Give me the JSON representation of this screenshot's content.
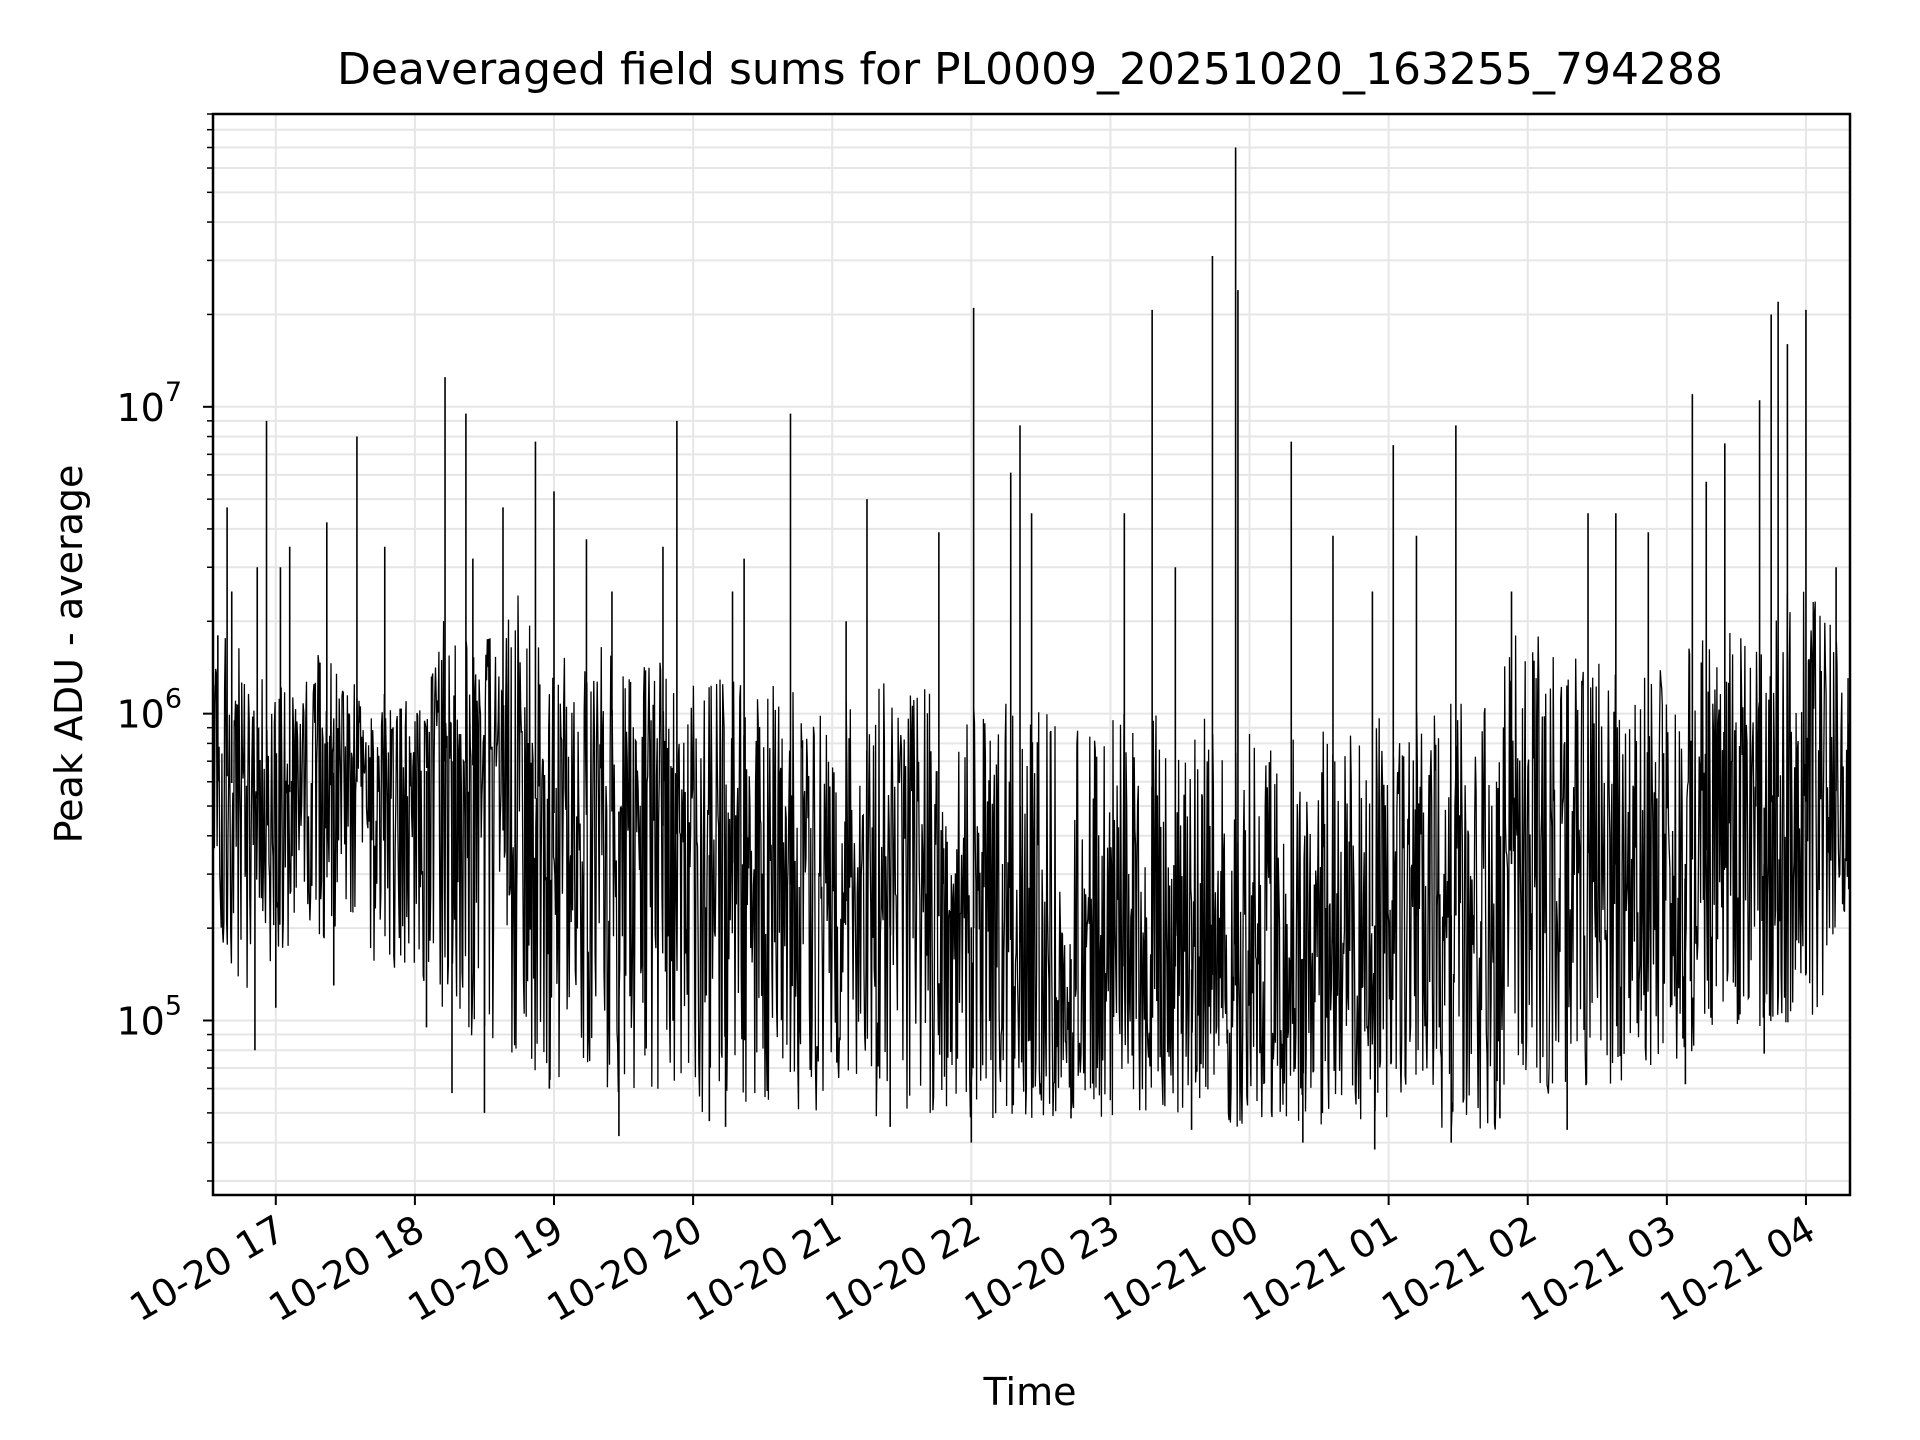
{
  "chart_data": {
    "type": "line",
    "title": "Deaveraged field sums for PL0009_20251020_163255_794288",
    "xlabel": "Time",
    "ylabel": "Peak ADU - average",
    "y_scale": "log",
    "ylim": [
      27000,
      90000000
    ],
    "xlim": [
      "2025-10-20 16:32:55",
      "2025-10-21 04:19:00"
    ],
    "x_ticks": [
      {
        "value": "2025-10-20 17:00",
        "label": "10-20 17"
      },
      {
        "value": "2025-10-20 18:00",
        "label": "10-20 18"
      },
      {
        "value": "2025-10-20 19:00",
        "label": "10-20 19"
      },
      {
        "value": "2025-10-20 20:00",
        "label": "10-20 20"
      },
      {
        "value": "2025-10-20 21:00",
        "label": "10-20 21"
      },
      {
        "value": "2025-10-20 22:00",
        "label": "10-20 22"
      },
      {
        "value": "2025-10-20 23:00",
        "label": "10-20 23"
      },
      {
        "value": "2025-10-21 00:00",
        "label": "10-21 00"
      },
      {
        "value": "2025-10-21 01:00",
        "label": "10-21 01"
      },
      {
        "value": "2025-10-21 02:00",
        "label": "10-21 02"
      },
      {
        "value": "2025-10-21 03:00",
        "label": "10-21 03"
      },
      {
        "value": "2025-10-21 04:00",
        "label": "10-21 04"
      }
    ],
    "y_ticks": [
      {
        "value": 100000,
        "mantissa": "10",
        "exp": "5"
      },
      {
        "value": 1000000,
        "mantissa": "10",
        "exp": "6"
      },
      {
        "value": 10000000,
        "mantissa": "10",
        "exp": "7"
      }
    ],
    "grid": true,
    "line_color": "#000000",
    "grid_color": "#e6e6e6",
    "series": [
      {
        "x": [
          "2025-10-20 16:33",
          "2025-10-20 16:40",
          "2025-10-20 16:49",
          "2025-10-20 16:56",
          "2025-10-20 17:05",
          "2025-10-20 17:15",
          "2025-10-20 17:23",
          "2025-10-20 17:35",
          "2025-10-20 17:45",
          "2025-10-20 17:55",
          "2025-10-20 18:05",
          "2025-10-20 18:13",
          "2025-10-20 18:20",
          "2025-10-20 18:32",
          "2025-10-20 18:45",
          "2025-10-20 18:55",
          "2025-10-20 19:05",
          "2025-10-20 19:20",
          "2025-10-20 19:35",
          "2025-10-20 19:50",
          "2025-10-20 20:05",
          "2025-10-20 20:20",
          "2025-10-20 20:40",
          "2025-10-20 21:00",
          "2025-10-20 21:25",
          "2025-10-20 21:45",
          "2025-10-20 22:01",
          "2025-10-20 22:20",
          "2025-10-20 22:40",
          "2025-10-20 23:00",
          "2025-10-20 23:15",
          "2025-10-20 23:30",
          "2025-10-20 23:45",
          "2025-10-20 23:54",
          "2025-10-21 00:10",
          "2025-10-21 00:30",
          "2025-10-21 00:50",
          "2025-10-21 01:10",
          "2025-10-21 01:30",
          "2025-10-21 01:47",
          "2025-10-21 01:55",
          "2025-10-21 02:15",
          "2025-10-21 02:35",
          "2025-10-21 02:55",
          "2025-10-21 03:15",
          "2025-10-21 03:35",
          "2025-10-21 03:50",
          "2025-10-21 04:05",
          "2025-10-21 04:18"
        ],
        "y": [
          800000,
          600000,
          550000,
          500000,
          550000,
          600000,
          650000,
          600000,
          650000,
          650000,
          650000,
          700000,
          700000,
          650000,
          600000,
          500000,
          450000,
          480000,
          480000,
          420000,
          350000,
          320000,
          280000,
          250000,
          230000,
          220000,
          200000,
          180000,
          160000,
          150000,
          150000,
          150000,
          140000,
          130000,
          140000,
          170000,
          200000,
          220000,
          220000,
          200000,
          380000,
          380000,
          330000,
          280000,
          350000,
          450000,
          550000,
          500000,
          600000
        ],
        "y_min": [
          300000,
          120000,
          120000,
          150000,
          160000,
          200000,
          180000,
          170000,
          150000,
          140000,
          130000,
          100000,
          80000,
          80000,
          70000,
          65000,
          60000,
          60000,
          55000,
          55000,
          50000,
          50000,
          50000,
          50000,
          48000,
          48000,
          47000,
          48000,
          48000,
          48000,
          50000,
          48000,
          46000,
          45000,
          45000,
          45000,
          45000,
          44000,
          45000,
          44000,
          60000,
          55000,
          60000,
          70000,
          80000,
          90000,
          95000,
          100000,
          230000
        ],
        "y_max": [
          1400000,
          2500000,
          1600000,
          1300000,
          1300000,
          1600000,
          1500000,
          1300000,
          1200000,
          1100000,
          1300000,
          2200000,
          1800000,
          1800000,
          2500000,
          2000000,
          1500000,
          1800000,
          1500000,
          1500000,
          1400000,
          1300000,
          1300000,
          1400000,
          1300000,
          1200000,
          1100000,
          1100000,
          1000000,
          1000000,
          1100000,
          1000000,
          1000000,
          900000,
          900000,
          900000,
          1000000,
          1000000,
          1100000,
          1300000,
          2000000,
          1700000,
          1400000,
          1400000,
          1900000,
          2200000,
          2800000,
          2400000,
          1500000
        ],
        "spikes": [
          [
            "2025-10-20 16:35",
            1800000
          ],
          [
            "2025-10-20 16:39",
            4700000
          ],
          [
            "2025-10-20 16:41",
            2500000
          ],
          [
            "2025-10-20 16:52",
            3000000
          ],
          [
            "2025-10-20 16:56",
            9000000
          ],
          [
            "2025-10-20 17:02",
            3000000
          ],
          [
            "2025-10-20 17:06",
            3500000
          ],
          [
            "2025-10-20 17:22",
            4200000
          ],
          [
            "2025-10-20 17:35",
            8000000
          ],
          [
            "2025-10-20 17:47",
            3500000
          ],
          [
            "2025-10-20 18:13",
            12500000
          ],
          [
            "2025-10-20 18:22",
            9500000
          ],
          [
            "2025-10-20 18:25",
            3200000
          ],
          [
            "2025-10-20 18:38",
            4700000
          ],
          [
            "2025-10-20 18:52",
            7700000
          ],
          [
            "2025-10-20 19:00",
            5300000
          ],
          [
            "2025-10-20 19:14",
            3700000
          ],
          [
            "2025-10-20 19:25",
            2500000
          ],
          [
            "2025-10-20 19:47",
            3500000
          ],
          [
            "2025-10-20 19:53",
            9000000
          ],
          [
            "2025-10-20 20:17",
            2500000
          ],
          [
            "2025-10-20 20:22",
            3200000
          ],
          [
            "2025-10-20 20:42",
            9500000
          ],
          [
            "2025-10-20 21:06",
            2000000
          ],
          [
            "2025-10-20 21:15",
            5000000
          ],
          [
            "2025-10-20 21:46",
            3900000
          ],
          [
            "2025-10-20 22:01",
            21000000
          ],
          [
            "2025-10-20 22:17",
            6100000
          ],
          [
            "2025-10-20 22:21",
            8700000
          ],
          [
            "2025-10-20 22:26",
            4500000
          ],
          [
            "2025-10-20 23:06",
            4500000
          ],
          [
            "2025-10-20 23:18",
            20700000
          ],
          [
            "2025-10-20 23:28",
            3000000
          ],
          [
            "2025-10-20 23:44",
            31000000
          ],
          [
            "2025-10-20 23:54",
            70000000
          ],
          [
            "2025-10-20 23:55",
            24000000
          ],
          [
            "2025-10-21 00:18",
            7700000
          ],
          [
            "2025-10-21 00:36",
            3800000
          ],
          [
            "2025-10-21 00:53",
            2500000
          ],
          [
            "2025-10-21 01:02",
            7500000
          ],
          [
            "2025-10-21 01:12",
            3800000
          ],
          [
            "2025-10-21 01:29",
            8700000
          ],
          [
            "2025-10-21 01:53",
            2500000
          ],
          [
            "2025-10-21 02:26",
            4500000
          ],
          [
            "2025-10-21 02:38",
            4500000
          ],
          [
            "2025-10-21 02:52",
            3900000
          ],
          [
            "2025-10-21 03:11",
            11000000
          ],
          [
            "2025-10-21 03:17",
            5700000
          ],
          [
            "2025-10-21 03:25",
            7600000
          ],
          [
            "2025-10-21 03:40",
            10500000
          ],
          [
            "2025-10-21 03:45",
            20000000
          ],
          [
            "2025-10-21 03:48",
            22000000
          ],
          [
            "2025-10-21 03:52",
            16000000
          ],
          [
            "2025-10-21 04:00",
            20700000
          ],
          [
            "2025-10-21 04:13",
            3000000
          ]
        ],
        "dips": [
          [
            "2025-10-20 16:51",
            80000
          ],
          [
            "2025-10-20 17:00",
            110000
          ],
          [
            "2025-10-20 17:25",
            130000
          ],
          [
            "2025-10-20 18:05",
            95000
          ],
          [
            "2025-10-20 18:16",
            58000
          ],
          [
            "2025-10-20 18:30",
            50000
          ],
          [
            "2025-10-20 18:58",
            60000
          ],
          [
            "2025-10-20 19:28",
            42000
          ],
          [
            "2025-10-20 20:07",
            47000
          ],
          [
            "2025-10-20 20:14",
            45000
          ],
          [
            "2025-10-20 21:25",
            45000
          ],
          [
            "2025-10-20 22:00",
            40000
          ],
          [
            "2025-10-20 22:43",
            48000
          ],
          [
            "2025-10-20 23:35",
            44000
          ],
          [
            "2025-10-21 00:23",
            40000
          ],
          [
            "2025-10-21 00:54",
            38000
          ],
          [
            "2025-10-21 01:27",
            40000
          ],
          [
            "2025-10-21 01:48",
            48000
          ],
          [
            "2025-10-21 02:17",
            44000
          ],
          [
            "2025-10-21 03:08",
            62000
          ],
          [
            "2025-10-21 03:42",
            78000
          ]
        ]
      }
    ]
  }
}
